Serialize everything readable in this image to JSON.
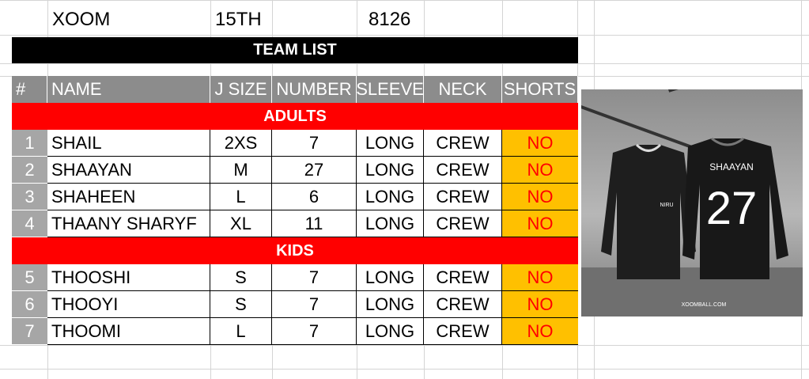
{
  "info": {
    "brand": "XOOM",
    "date": "15TH",
    "order_no": "8126"
  },
  "banner": "TEAM LIST",
  "headers": [
    "#",
    "NAME",
    "J SIZE",
    "NUMBER",
    "SLEEVE",
    "NECK",
    "SHORTS"
  ],
  "sections": [
    {
      "title": "ADULTS",
      "rows": [
        {
          "n": "1",
          "name": "SHAIL",
          "size": "2XS",
          "number": "7",
          "sleeve": "LONG",
          "neck": "CREW",
          "shorts": "NO"
        },
        {
          "n": "2",
          "name": "SHAAYAN",
          "size": "M",
          "number": "27",
          "sleeve": "LONG",
          "neck": "CREW",
          "shorts": "NO"
        },
        {
          "n": "3",
          "name": "SHAHEEN",
          "size": "L",
          "number": "6",
          "sleeve": "LONG",
          "neck": "CREW",
          "shorts": "NO"
        },
        {
          "n": "4",
          "name": "THAANY SHARYF",
          "size": "XL",
          "number": "11",
          "sleeve": "LONG",
          "neck": "CREW",
          "shorts": "NO"
        }
      ]
    },
    {
      "title": "KIDS",
      "rows": [
        {
          "n": "5",
          "name": "THOOSHI",
          "size": "S",
          "number": "7",
          "sleeve": "LONG",
          "neck": "CREW",
          "shorts": "NO"
        },
        {
          "n": "6",
          "name": "THOOYI",
          "size": "S",
          "number": "7",
          "sleeve": "LONG",
          "neck": "CREW",
          "shorts": "NO"
        },
        {
          "n": "7",
          "name": "THOOMI",
          "size": "L",
          "number": "7",
          "sleeve": "LONG",
          "neck": "CREW",
          "shorts": "NO"
        }
      ]
    }
  ],
  "jersey": {
    "back_name": "SHAAYAN",
    "back_number": "27",
    "chest_mark": "NIRU",
    "footer_text": "XOOMBALL.COM"
  },
  "colors": {
    "banner": "#000000",
    "header": "#8c8c8c",
    "section": "#ff0000",
    "shorts_fill": "#ffc000",
    "shorts_text": "#ff0000"
  }
}
